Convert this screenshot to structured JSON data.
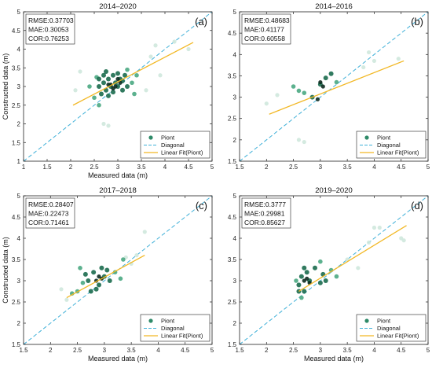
{
  "chart_data": [
    {
      "type": "scatter",
      "title": "2014–2020",
      "panel_label": "(a)",
      "xlabel": "Measured data (m)",
      "ylabel": "Constructed data (m)",
      "xlim": [
        1,
        5
      ],
      "ylim": [
        1,
        5
      ],
      "xticks": [
        "1",
        "1.5",
        "2",
        "2.5",
        "3",
        "3.5",
        "4",
        "4.5",
        "5"
      ],
      "yticks": [
        "1",
        "1.5",
        "2",
        "2.5",
        "3",
        "3.5",
        "4",
        "4.5",
        "5"
      ],
      "stats": [
        "RMSE:0.37703",
        "MAE:0.30053",
        "COR:0.76253"
      ],
      "legend": [
        "Piont",
        "Diagonal",
        "Linear Fit(Piont)"
      ],
      "legend_placement": "bottom-right",
      "fit_line": [
        [
          2.05,
          2.5
        ],
        [
          4.6,
          4.18
        ]
      ],
      "points": {
        "dense": [
          [
            2.6,
            3.2
          ],
          [
            2.7,
            3.1
          ],
          [
            2.75,
            2.9
          ],
          [
            2.8,
            3.2
          ],
          [
            2.85,
            3.0
          ],
          [
            2.9,
            3.3
          ],
          [
            2.95,
            3.1
          ],
          [
            3.0,
            3.0
          ],
          [
            3.05,
            3.2
          ],
          [
            3.1,
            2.9
          ],
          [
            2.65,
            2.8
          ],
          [
            2.7,
            3.3
          ],
          [
            2.8,
            2.75
          ],
          [
            2.9,
            2.85
          ],
          [
            3.0,
            3.35
          ],
          [
            3.1,
            3.15
          ],
          [
            3.15,
            3.3
          ],
          [
            2.6,
            3.0
          ],
          [
            2.75,
            3.4
          ],
          [
            3.2,
            3.0
          ]
        ],
        "mid": [
          [
            2.5,
            2.7
          ],
          [
            2.55,
            3.25
          ],
          [
            3.2,
            3.45
          ],
          [
            3.3,
            3.1
          ],
          [
            2.4,
            3.0
          ],
          [
            2.6,
            2.5
          ],
          [
            3.4,
            3.3
          ],
          [
            3.35,
            2.8
          ]
        ],
        "faint": [
          [
            2.2,
            3.4
          ],
          [
            3.7,
            3.8
          ],
          [
            3.8,
            4.1
          ],
          [
            4.2,
            4.2
          ],
          [
            2.7,
            2.0
          ],
          [
            2.8,
            1.95
          ],
          [
            3.9,
            3.3
          ],
          [
            4.5,
            4.0
          ],
          [
            3.6,
            2.9
          ],
          [
            2.1,
            2.9
          ]
        ],
        "core": [
          [
            2.85,
            3.05
          ],
          [
            2.95,
            3.0
          ],
          [
            3.05,
            3.1
          ],
          [
            2.9,
            2.95
          ],
          [
            3.0,
            3.2
          ],
          [
            2.8,
            3.05
          ]
        ]
      }
    },
    {
      "type": "scatter",
      "title": "2014–2016",
      "panel_label": "(b)",
      "xlabel": "",
      "ylabel": "",
      "xlim": [
        1.5,
        5
      ],
      "ylim": [
        1.5,
        5
      ],
      "xticks": [
        "1.5",
        "2",
        "2.5",
        "3",
        "3.5",
        "4",
        "4.5",
        "5"
      ],
      "yticks": [
        "1.5",
        "2",
        "2.5",
        "3",
        "3.5",
        "4",
        "4.5",
        "5"
      ],
      "stats": [
        "RMSE:0.48683",
        "MAE:0.41177",
        "COR:0.60558"
      ],
      "legend": [
        "Piont",
        "Diagonal",
        "Linear Fit(Piont)"
      ],
      "legend_placement": "bottom-right",
      "fit_line": [
        [
          2.05,
          2.6
        ],
        [
          4.55,
          3.85
        ]
      ],
      "points": {
        "dense": [
          [
            3.0,
            3.3
          ],
          [
            3.1,
            3.45
          ],
          [
            2.85,
            3.0
          ],
          [
            3.2,
            3.55
          ]
        ],
        "mid": [
          [
            2.5,
            3.25
          ],
          [
            2.7,
            3.1
          ],
          [
            3.3,
            3.35
          ],
          [
            2.6,
            3.15
          ]
        ],
        "faint": [
          [
            2.2,
            3.05
          ],
          [
            3.8,
            3.7
          ],
          [
            4.0,
            3.85
          ],
          [
            2.0,
            2.85
          ],
          [
            2.6,
            2.0
          ],
          [
            2.7,
            1.95
          ],
          [
            3.9,
            4.05
          ],
          [
            4.45,
            3.9
          ]
        ],
        "core": [
          [
            3.05,
            3.25
          ],
          [
            3.0,
            3.35
          ],
          [
            2.95,
            2.95
          ]
        ]
      }
    },
    {
      "type": "scatter",
      "title": "2017–2018",
      "panel_label": "(c)",
      "xlabel": "Measured data (m)",
      "ylabel": "Constructed data (m)",
      "xlim": [
        1.5,
        5
      ],
      "ylim": [
        1.5,
        5
      ],
      "xticks": [
        "1.5",
        "2",
        "2.5",
        "3",
        "3.5",
        "4",
        "4.5",
        "5"
      ],
      "yticks": [
        "1.5",
        "2",
        "2.5",
        "3",
        "3.5",
        "4",
        "4.5",
        "5"
      ],
      "stats": [
        "RMSE:0.28407",
        "MAE:0.22473",
        "COR:0.71461"
      ],
      "legend": [
        "Piont",
        "Diagonal",
        "Linear Fit(Piont)"
      ],
      "legend_placement": "bottom-right",
      "fit_line": [
        [
          2.3,
          2.6
        ],
        [
          3.75,
          3.6
        ]
      ],
      "points": {
        "dense": [
          [
            2.7,
            3.0
          ],
          [
            2.8,
            3.2
          ],
          [
            2.9,
            2.9
          ],
          [
            3.0,
            3.1
          ],
          [
            2.75,
            2.75
          ],
          [
            2.95,
            3.3
          ],
          [
            3.1,
            3.0
          ],
          [
            2.65,
            3.15
          ],
          [
            2.85,
            2.8
          ],
          [
            3.05,
            3.25
          ]
        ],
        "mid": [
          [
            2.5,
            2.75
          ],
          [
            2.6,
            2.95
          ],
          [
            3.2,
            3.2
          ],
          [
            3.3,
            3.05
          ],
          [
            2.4,
            2.7
          ],
          [
            3.35,
            3.5
          ],
          [
            2.55,
            3.3
          ]
        ],
        "faint": [
          [
            2.2,
            2.8
          ],
          [
            3.5,
            3.4
          ],
          [
            3.6,
            3.6
          ],
          [
            3.75,
            4.15
          ],
          [
            2.3,
            2.55
          ],
          [
            3.4,
            3.55
          ]
        ],
        "core": [
          [
            2.85,
            3.0
          ],
          [
            2.95,
            3.05
          ],
          [
            2.9,
            3.1
          ]
        ]
      }
    },
    {
      "type": "scatter",
      "title": "2019–2020",
      "panel_label": "(d)",
      "xlabel": "Measured data (m)",
      "ylabel": "",
      "xlim": [
        1.5,
        5
      ],
      "ylim": [
        1.5,
        5
      ],
      "xticks": [
        "1.5",
        "2",
        "2.5",
        "3",
        "3.5",
        "4",
        "4.5",
        "5"
      ],
      "yticks": [
        "1.5",
        "2",
        "2.5",
        "3",
        "3.5",
        "4",
        "4.5",
        "5"
      ],
      "stats": [
        "RMSE:0.3777",
        "MAE:0.29981",
        "COR:0.85627"
      ],
      "legend": [
        "Piont",
        "Diagonal",
        "Linear Fit(Piont)"
      ],
      "legend_placement": "bottom-right",
      "fit_line": [
        [
          2.6,
          2.75
        ],
        [
          4.6,
          4.3
        ]
      ],
      "points": {
        "dense": [
          [
            2.6,
            2.9
          ],
          [
            2.65,
            3.1
          ],
          [
            2.7,
            2.75
          ],
          [
            2.75,
            3.2
          ],
          [
            2.8,
            3.0
          ],
          [
            2.9,
            3.3
          ],
          [
            3.0,
            2.95
          ],
          [
            3.05,
            3.15
          ],
          [
            2.7,
            3.3
          ],
          [
            2.6,
            2.75
          ],
          [
            3.1,
            3.0
          ]
        ],
        "mid": [
          [
            2.55,
            3.0
          ],
          [
            3.2,
            3.25
          ],
          [
            3.3,
            3.1
          ],
          [
            3.0,
            3.45
          ],
          [
            2.65,
            2.6
          ]
        ],
        "faint": [
          [
            3.5,
            3.5
          ],
          [
            3.7,
            3.3
          ],
          [
            4.0,
            4.25
          ],
          [
            4.1,
            4.25
          ],
          [
            4.5,
            4.0
          ],
          [
            3.9,
            3.9
          ],
          [
            4.55,
            3.95
          ]
        ],
        "core": [
          [
            2.75,
            3.05
          ],
          [
            2.8,
            2.95
          ],
          [
            2.7,
            3.0
          ]
        ]
      }
    }
  ],
  "colors": {
    "dense": "#1b6b4e",
    "mid": "#4aa882",
    "faint": "#cfe8dd",
    "core": "#0d2b20",
    "diagonal": "#3fb0d8",
    "fit": "#f2b825",
    "legend_point": "#2e8a68"
  }
}
